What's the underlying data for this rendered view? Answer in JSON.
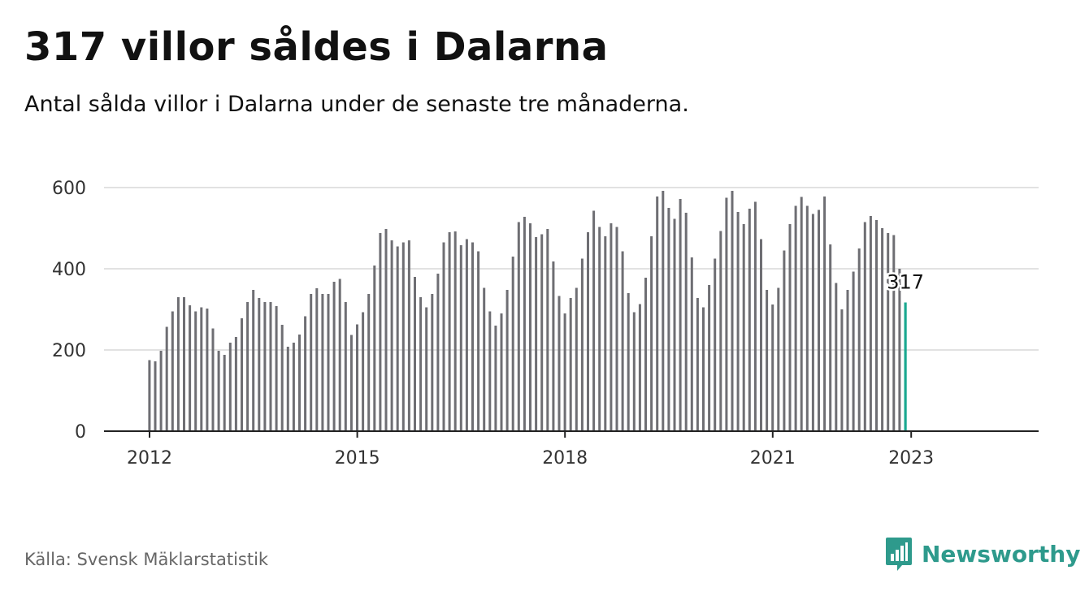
{
  "title": "317 villor såldes i Dalarna",
  "subtitle": "Antal sålda villor i Dalarna under de senaste tre månaderna.",
  "source": "Källa: Svensk Mäklarstatistik",
  "brand": "Newsworthy",
  "colors": {
    "bar": "#6e6e73",
    "highlight": "#1aa890",
    "grid": "#d9d9d9",
    "axis": "#222222",
    "brand": "#2e9a8c"
  },
  "chart_data": {
    "type": "bar",
    "start": "2012-01",
    "x_ticks": [
      "2012",
      "2015",
      "2018",
      "2021",
      "2023"
    ],
    "y_ticks": [
      0,
      200,
      400,
      600
    ],
    "ylim": [
      0,
      600
    ],
    "grid": true,
    "highlight_label": "317",
    "values": [
      175,
      172,
      198,
      257,
      295,
      330,
      330,
      310,
      295,
      305,
      302,
      253,
      198,
      188,
      218,
      232,
      278,
      318,
      348,
      328,
      318,
      318,
      308,
      262,
      208,
      218,
      238,
      283,
      338,
      352,
      338,
      338,
      368,
      375,
      318,
      237,
      263,
      293,
      338,
      408,
      488,
      498,
      470,
      455,
      465,
      470,
      380,
      330,
      305,
      338,
      388,
      465,
      490,
      492,
      458,
      473,
      465,
      443,
      353,
      295,
      260,
      290,
      348,
      430,
      515,
      528,
      512,
      478,
      485,
      498,
      418,
      333,
      290,
      328,
      353,
      425,
      490,
      543,
      503,
      480,
      512,
      503,
      443,
      340,
      293,
      313,
      378,
      480,
      578,
      592,
      550,
      523,
      572,
      538,
      428,
      328,
      305,
      360,
      425,
      493,
      575,
      592,
      540,
      510,
      548,
      565,
      473,
      348,
      312,
      353,
      445,
      510,
      555,
      577,
      555,
      535,
      545,
      578,
      460,
      365,
      300,
      348,
      393,
      450,
      515,
      530,
      520,
      500,
      488,
      483,
      400,
      317
    ]
  }
}
